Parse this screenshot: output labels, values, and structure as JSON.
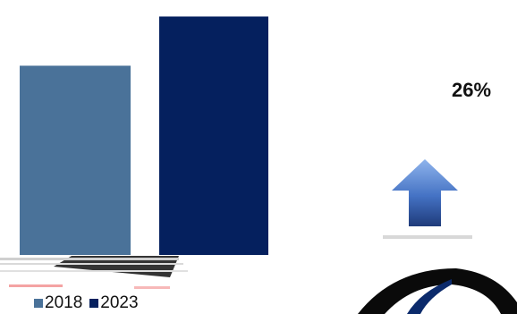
{
  "chart_data": {
    "type": "bar",
    "categories": [
      "2018",
      "2023"
    ],
    "series": [
      {
        "name": "2018",
        "values": [
          100,
          null
        ]
      },
      {
        "name": "2023",
        "values": [
          null,
          126
        ]
      }
    ],
    "values": [
      100,
      126
    ],
    "ylim": [
      0,
      130
    ],
    "grid": false,
    "legend_position": "bottom-left",
    "annotation": {
      "text": "26%"
    },
    "colors": {
      "2018": "#4a7299",
      "2023": "#05205e",
      "arrow": "#4472c4"
    }
  },
  "legend": {
    "item_2018": "2018",
    "item_2023": "2023"
  },
  "annotation": {
    "pct": "26%"
  }
}
